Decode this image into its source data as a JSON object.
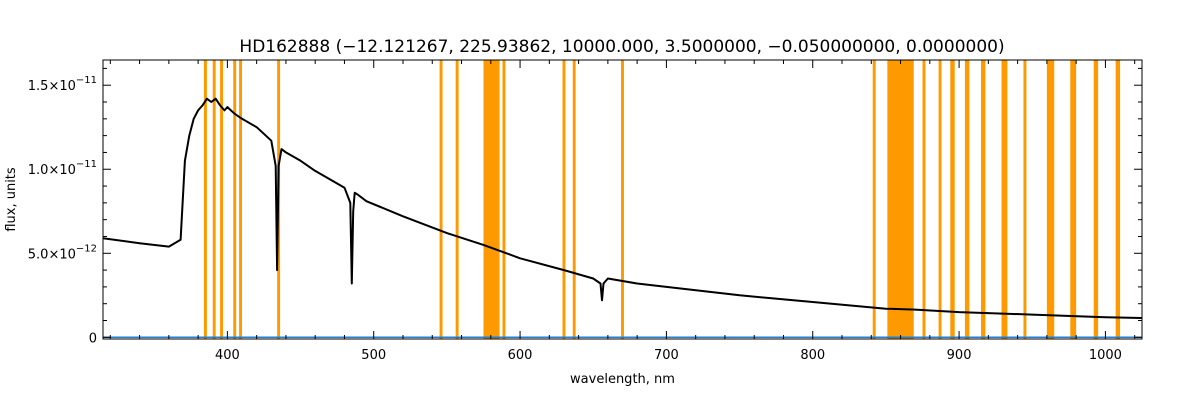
{
  "chart_data": {
    "type": "line",
    "title": "HD162888   (−12.121267, 225.93862, 10000.000, 3.5000000, −0.050000000, 0.0000000)",
    "xlabel": "wavelength, nm",
    "ylabel": "flux, units",
    "xlim": [
      315,
      1025
    ],
    "ylim": [
      -1e-13,
      1.65e-11
    ],
    "log_scale": false,
    "grid": false,
    "legend": "none",
    "x_ticks": [
      {
        "value": 400,
        "label": "400"
      },
      {
        "value": 500,
        "label": "500"
      },
      {
        "value": 600,
        "label": "600"
      },
      {
        "value": 700,
        "label": "700"
      },
      {
        "value": 800,
        "label": "800"
      },
      {
        "value": 900,
        "label": "900"
      },
      {
        "value": 1000,
        "label": "1000"
      }
    ],
    "y_ticks": [
      {
        "value": 0,
        "mantissa": "0",
        "exponent": ""
      },
      {
        "value": 5e-12,
        "mantissa": "5.0×10",
        "exponent": "−12"
      },
      {
        "value": 1e-11,
        "mantissa": "1.0×10",
        "exponent": "−11"
      },
      {
        "value": 1.5e-11,
        "mantissa": "1.5×10",
        "exponent": "−11"
      }
    ],
    "masked_bands_nm": [
      [
        384,
        386
      ],
      [
        390,
        392
      ],
      [
        395,
        397
      ],
      [
        404,
        406
      ],
      [
        408,
        410
      ],
      [
        434,
        436
      ],
      [
        545,
        547
      ],
      [
        556,
        558
      ],
      [
        575,
        586
      ],
      [
        588,
        590
      ],
      [
        629,
        631
      ],
      [
        636,
        638
      ],
      [
        669,
        671
      ],
      [
        841,
        843
      ],
      [
        851,
        869
      ],
      [
        875,
        877
      ],
      [
        886,
        888
      ],
      [
        894,
        897
      ],
      [
        904,
        907
      ],
      [
        915,
        918
      ],
      [
        929,
        933
      ],
      [
        944,
        946
      ],
      [
        960,
        965
      ],
      [
        976,
        980
      ],
      [
        992,
        995
      ],
      [
        1007,
        1010
      ]
    ],
    "series": [
      {
        "color": "#000000",
        "x": [
          315,
          340,
          360,
          368,
          371,
          374,
          377,
          380,
          383,
          386,
          389,
          392,
          395,
          398,
          400,
          405,
          410,
          420,
          430,
          433,
          434,
          435,
          437,
          440,
          450,
          460,
          470,
          480,
          484,
          485,
          486,
          487,
          489,
          495,
          520,
          550,
          575,
          600,
          630,
          650,
          655,
          656,
          657,
          660,
          680,
          700,
          750,
          800,
          850,
          870,
          900,
          950,
          1000,
          1025
        ],
        "y": [
          5.9e-12,
          5.6e-12,
          5.4e-12,
          5.8e-12,
          1.05e-11,
          1.2e-11,
          1.3e-11,
          1.35e-11,
          1.38e-11,
          1.42e-11,
          1.4e-11,
          1.42e-11,
          1.38e-11,
          1.35e-11,
          1.37e-11,
          1.33e-11,
          1.3e-11,
          1.25e-11,
          1.17e-11,
          1.02e-11,
          4e-12,
          1.02e-11,
          1.12e-11,
          1.1e-11,
          1.05e-11,
          9.9e-12,
          9.4e-12,
          8.9e-12,
          8e-12,
          3.2e-12,
          7.5e-12,
          8.6e-12,
          8.5e-12,
          8.1e-12,
          7.2e-12,
          6.2e-12,
          5.5e-12,
          4.7e-12,
          4e-12,
          3.5e-12,
          3.2e-12,
          2.2e-12,
          3.2e-12,
          3.5e-12,
          3.2e-12,
          3e-12,
          2.5e-12,
          2.1e-12,
          1.7e-12,
          1.65e-12,
          1.5e-12,
          1.35e-12,
          1.2e-12,
          1.15e-12
        ]
      },
      {
        "color": "#1f7fd4",
        "x": [
          315,
          1025
        ],
        "y": [
          0,
          0
        ]
      }
    ]
  },
  "colors": {
    "spectrum": "#000000",
    "mask_band": "#ff9900",
    "baseline": "#1f7fd4",
    "axes": "#000000"
  }
}
